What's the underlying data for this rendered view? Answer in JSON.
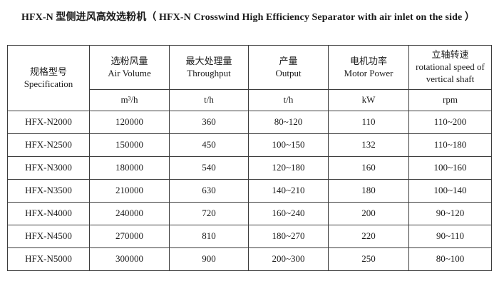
{
  "title": "HFX-N 型侧进风高效选粉机（ HFX-N Crosswind High Efficiency Separator with air inlet on the side ）",
  "table": {
    "columns": [
      {
        "zh": "规格型号",
        "en": "Specification",
        "unit": ""
      },
      {
        "zh": "选粉风量",
        "en": "Air Volume",
        "unit": "m³/h"
      },
      {
        "zh": "最大处理量",
        "en": "Throughput",
        "unit": "t/h"
      },
      {
        "zh": "产量",
        "en": "Output",
        "unit": "t/h"
      },
      {
        "zh": "电机功率",
        "en": "Motor Power",
        "unit": "kW"
      },
      {
        "zh": "立轴转速",
        "en": "rotational speed of vertical shaft",
        "unit": "rpm"
      }
    ],
    "rows": [
      [
        "HFX-N2000",
        "120000",
        "360",
        "80~120",
        "110",
        "110~200"
      ],
      [
        "HFX-N2500",
        "150000",
        "450",
        "100~150",
        "132",
        "110~180"
      ],
      [
        "HFX-N3000",
        "180000",
        "540",
        "120~180",
        "160",
        "100~160"
      ],
      [
        "HFX-N3500",
        "210000",
        "630",
        "140~210",
        "180",
        "100~140"
      ],
      [
        "HFX-N4000",
        "240000",
        "720",
        "160~240",
        "200",
        "90~120"
      ],
      [
        "HFX-N4500",
        "270000",
        "810",
        "180~270",
        "220",
        "90~110"
      ],
      [
        "HFX-N5000",
        "300000",
        "900",
        "200~300",
        "250",
        "80~100"
      ]
    ]
  },
  "colors": {
    "background": "#ffffff",
    "text": "#1a1a1a",
    "border": "#3d3d3d"
  }
}
